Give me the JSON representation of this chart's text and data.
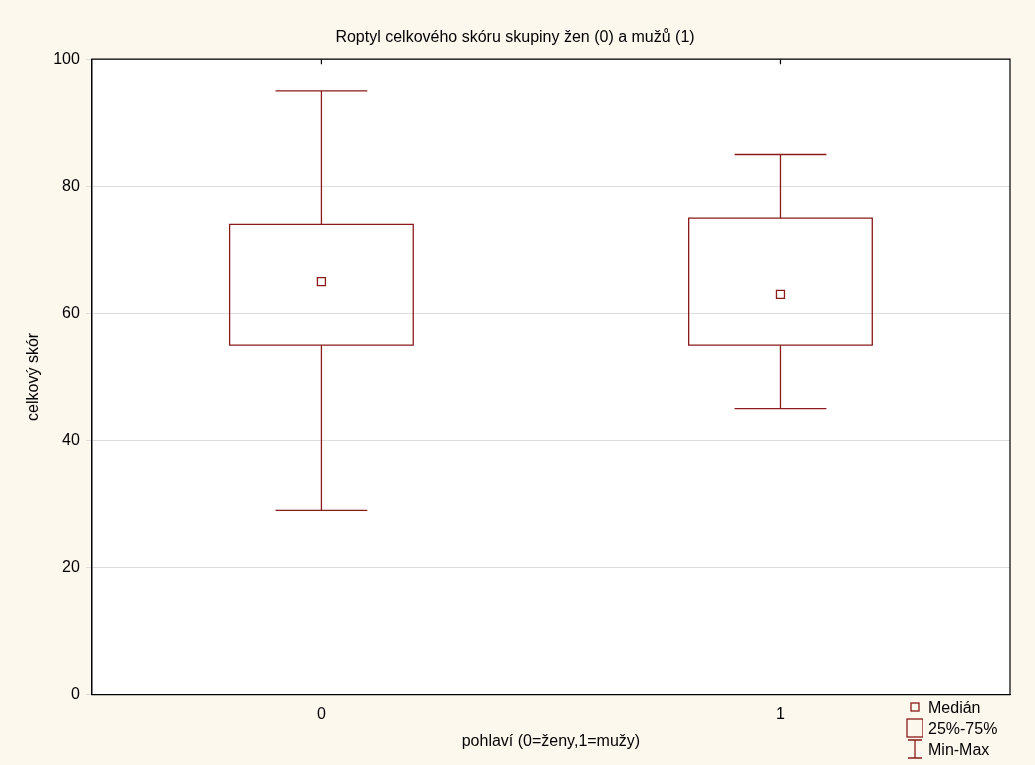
{
  "chart_data": {
    "type": "box",
    "title": "Roptyl celkového skóru skupiny žen (0) a mužů (1)",
    "xlabel": "pohlaví (0=ženy,1=mužy)",
    "ylabel": "celkový skór",
    "categories": [
      "0",
      "1"
    ],
    "color": "#8b1a1a",
    "boxes": [
      {
        "low": 29,
        "q1": 55,
        "median": 65,
        "q3": 74,
        "high": 95
      },
      {
        "low": 45,
        "q1": 55,
        "median": 63,
        "q3": 75,
        "high": 85
      }
    ],
    "ylim": [
      0,
      100
    ],
    "yticks": [
      0,
      20,
      40,
      60,
      80,
      100
    ],
    "grid": "y",
    "annotations": [
      "Medián",
      "25%-75%",
      "Min-Max"
    ]
  }
}
